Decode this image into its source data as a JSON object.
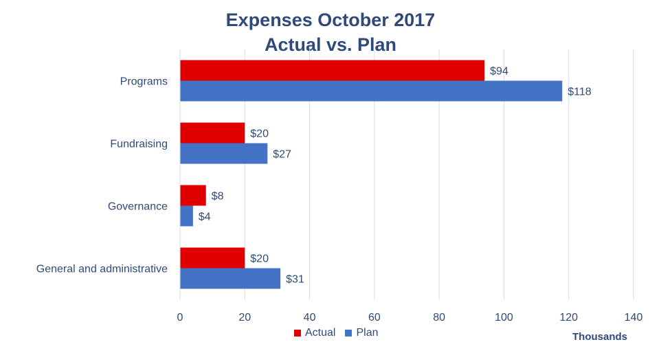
{
  "chart_data": {
    "type": "bar",
    "orientation": "horizontal",
    "title": "Expenses October 2017",
    "subtitle": "Actual vs. Plan",
    "categories": [
      "Programs",
      "Fundraising",
      "Governance",
      "General and administrative"
    ],
    "series": [
      {
        "name": "Actual",
        "color": "#e00000",
        "values": [
          94,
          20,
          8,
          20
        ],
        "labels": [
          "$94",
          "$20",
          "$8",
          "$20"
        ]
      },
      {
        "name": "Plan",
        "color": "#4472c4",
        "values": [
          118,
          27,
          4,
          31
        ],
        "labels": [
          "$118",
          "$27",
          "$4",
          "$31"
        ]
      }
    ],
    "xlabel": "Thousands",
    "xlim": [
      0,
      140
    ],
    "xticks": [
      0,
      20,
      40,
      60,
      80,
      100,
      120,
      140
    ],
    "grid": true,
    "legend_position": "bottom"
  }
}
